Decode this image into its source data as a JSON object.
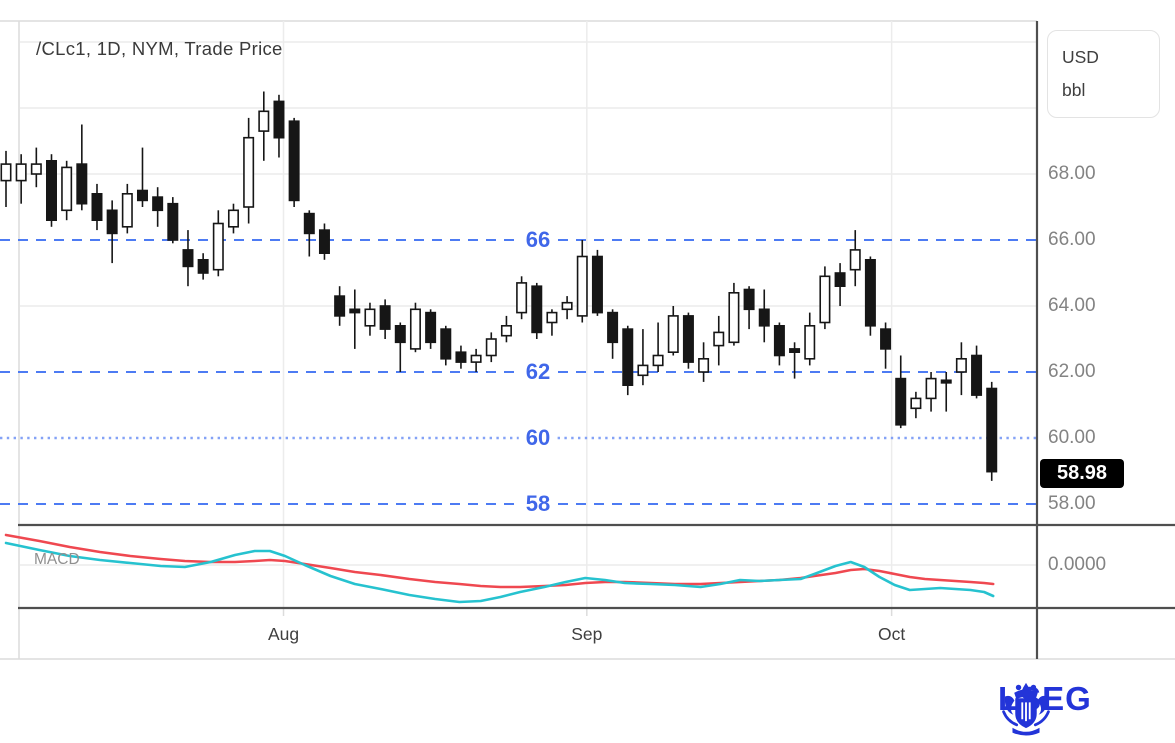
{
  "header": {
    "title": "/CLc1, 1D, NYM, Trade Price"
  },
  "price_axis": {
    "unit_top": "USD",
    "unit_bottom": "bbl",
    "ticks": [
      {
        "label": "68.00",
        "value": 68
      },
      {
        "label": "66.00",
        "value": 66
      },
      {
        "label": "64.00",
        "value": 64
      },
      {
        "label": "62.00",
        "value": 62
      },
      {
        "label": "60.00",
        "value": 60
      },
      {
        "label": "58.00",
        "value": 58
      }
    ],
    "last_price_label": "58.98",
    "last_price_value": 58.98,
    "macd_zero_label": "0.0000"
  },
  "levels": [
    {
      "label": "66",
      "value": 66,
      "style": "dashed"
    },
    {
      "label": "62",
      "value": 62,
      "style": "dashed"
    },
    {
      "label": "60",
      "value": 60,
      "style": "dotted"
    },
    {
      "label": "58",
      "value": 58,
      "style": "dashed"
    }
  ],
  "time_axis": {
    "ticks": [
      {
        "label": "Aug",
        "index": 18.3
      },
      {
        "label": "Sep",
        "index": 38.3
      },
      {
        "label": "Oct",
        "index": 58.4
      }
    ]
  },
  "macd_panel": {
    "label": "MACD"
  },
  "logo": {
    "text": "LSEG",
    "color": "#2334d8"
  },
  "colors": {
    "candle_dark": "#161616",
    "candle_up_fill": "#ffffff",
    "level_blue": "#4d7bf3",
    "level_blue_dotted": "#84a2f6",
    "label_blue": "#4067e9",
    "grid_light": "#ececec",
    "border_light": "#dcdcdc",
    "border_dark": "#4f4f4f",
    "macd_line": "#26c2cf",
    "macd_signal": "#ef4850"
  },
  "chart_data": {
    "type": "candlestick",
    "title": "/CLc1, 1D, NYM, Trade Price",
    "instrument": "/CLc1",
    "interval": "1D",
    "exchange": "NYM",
    "unit": "USD bbl",
    "x_ticks": [
      "Aug",
      "Sep",
      "Oct"
    ],
    "y_ticks": [
      68,
      66,
      64,
      62,
      60,
      58
    ],
    "gray_grid_prices": [
      72,
      70,
      68,
      64
    ],
    "last_price": 58.98,
    "ohlc": [
      [
        67.8,
        68.7,
        67.0,
        68.3
      ],
      [
        67.8,
        68.6,
        67.1,
        68.3
      ],
      [
        68.0,
        68.8,
        67.6,
        68.3
      ],
      [
        68.4,
        68.6,
        66.4,
        66.6
      ],
      [
        66.9,
        68.4,
        66.6,
        68.2
      ],
      [
        68.3,
        69.5,
        66.9,
        67.1
      ],
      [
        67.4,
        67.7,
        66.3,
        66.6
      ],
      [
        66.9,
        67.2,
        65.3,
        66.2
      ],
      [
        66.4,
        67.7,
        66.2,
        67.4
      ],
      [
        67.5,
        68.8,
        67.0,
        67.2
      ],
      [
        67.3,
        67.6,
        66.4,
        66.9
      ],
      [
        67.1,
        67.3,
        65.9,
        66.0
      ],
      [
        65.7,
        66.3,
        64.6,
        65.2
      ],
      [
        65.4,
        65.6,
        64.8,
        65.0
      ],
      [
        65.1,
        66.9,
        64.9,
        66.5
      ],
      [
        66.4,
        67.1,
        66.2,
        66.9
      ],
      [
        67.0,
        69.7,
        66.5,
        69.1
      ],
      [
        69.3,
        70.5,
        68.4,
        69.9
      ],
      [
        70.2,
        70.4,
        68.5,
        69.1
      ],
      [
        69.6,
        69.7,
        67.0,
        67.2
      ],
      [
        66.8,
        66.9,
        65.5,
        66.2
      ],
      [
        66.3,
        66.5,
        65.4,
        65.6
      ],
      [
        64.3,
        64.6,
        63.4,
        63.7
      ],
      [
        63.9,
        64.5,
        62.7,
        63.8
      ],
      [
        63.4,
        64.1,
        63.1,
        63.9
      ],
      [
        64.0,
        64.2,
        63.0,
        63.3
      ],
      [
        63.4,
        63.5,
        62.0,
        62.9
      ],
      [
        62.7,
        64.1,
        62.6,
        63.9
      ],
      [
        63.8,
        63.9,
        62.7,
        62.9
      ],
      [
        63.3,
        63.4,
        62.2,
        62.4
      ],
      [
        62.6,
        62.8,
        62.1,
        62.3
      ],
      [
        62.3,
        62.7,
        62.0,
        62.5
      ],
      [
        62.5,
        63.2,
        62.3,
        63.0
      ],
      [
        63.1,
        63.7,
        62.9,
        63.4
      ],
      [
        63.8,
        64.9,
        63.6,
        64.7
      ],
      [
        64.6,
        64.7,
        63.0,
        63.2
      ],
      [
        63.5,
        63.9,
        63.1,
        63.8
      ],
      [
        63.9,
        64.3,
        63.6,
        64.1
      ],
      [
        63.7,
        66.0,
        63.5,
        65.5
      ],
      [
        65.5,
        65.7,
        63.7,
        63.8
      ],
      [
        63.8,
        63.9,
        62.4,
        62.9
      ],
      [
        63.3,
        63.4,
        61.3,
        61.6
      ],
      [
        61.9,
        63.3,
        61.6,
        62.2
      ],
      [
        62.2,
        63.5,
        62.0,
        62.5
      ],
      [
        62.6,
        64.0,
        62.5,
        63.7
      ],
      [
        63.7,
        63.8,
        62.1,
        62.3
      ],
      [
        62.0,
        62.9,
        61.7,
        62.4
      ],
      [
        62.8,
        63.7,
        62.2,
        63.2
      ],
      [
        62.9,
        64.7,
        62.8,
        64.4
      ],
      [
        64.5,
        64.6,
        63.3,
        63.9
      ],
      [
        63.9,
        64.5,
        62.9,
        63.4
      ],
      [
        63.4,
        63.5,
        62.2,
        62.5
      ],
      [
        62.7,
        62.9,
        61.8,
        62.6
      ],
      [
        62.4,
        63.8,
        62.2,
        63.4
      ],
      [
        63.5,
        65.2,
        63.3,
        64.9
      ],
      [
        65.0,
        65.3,
        64.0,
        64.6
      ],
      [
        65.1,
        66.3,
        64.6,
        65.7
      ],
      [
        65.4,
        65.5,
        63.1,
        63.4
      ],
      [
        63.3,
        63.5,
        62.1,
        62.7
      ],
      [
        61.8,
        62.5,
        60.3,
        60.4
      ],
      [
        60.9,
        61.4,
        60.6,
        61.2
      ],
      [
        61.2,
        62.0,
        60.8,
        61.8
      ],
      [
        61.75,
        62.0,
        60.8,
        61.7
      ],
      [
        62.0,
        62.9,
        61.3,
        62.4
      ],
      [
        62.5,
        62.8,
        61.2,
        61.3
      ],
      [
        61.5,
        61.7,
        58.7,
        58.98
      ]
    ],
    "macd": {
      "zero": 0.0,
      "macd_points": [
        [
          0,
          0.333
        ],
        [
          2.2,
          0.227
        ],
        [
          4.2,
          0.136
        ],
        [
          6.2,
          0.076
        ],
        [
          8.2,
          0.03
        ],
        [
          10.2,
          -0.015
        ],
        [
          11.8,
          -0.03
        ],
        [
          13.5,
          0.045
        ],
        [
          15.1,
          0.152
        ],
        [
          16.4,
          0.212
        ],
        [
          17.4,
          0.212
        ],
        [
          18.4,
          0.136
        ],
        [
          19.7,
          0.0
        ],
        [
          21.4,
          -0.167
        ],
        [
          23,
          -0.288
        ],
        [
          24.7,
          -0.364
        ],
        [
          26.6,
          -0.455
        ],
        [
          28.3,
          -0.515
        ],
        [
          29.9,
          -0.561
        ],
        [
          31.3,
          -0.545
        ],
        [
          32.6,
          -0.485
        ],
        [
          33.9,
          -0.409
        ],
        [
          35.5,
          -0.333
        ],
        [
          36.9,
          -0.258
        ],
        [
          38.2,
          -0.197
        ],
        [
          39.5,
          -0.227
        ],
        [
          40.8,
          -0.273
        ],
        [
          42.5,
          -0.288
        ],
        [
          44.1,
          -0.303
        ],
        [
          45.8,
          -0.333
        ],
        [
          47.1,
          -0.288
        ],
        [
          48.4,
          -0.227
        ],
        [
          49.7,
          -0.242
        ],
        [
          51,
          -0.227
        ],
        [
          52.4,
          -0.212
        ],
        [
          53.3,
          -0.136
        ],
        [
          54.7,
          -0.015
        ],
        [
          55.7,
          0.045
        ],
        [
          56.6,
          -0.03
        ],
        [
          57.6,
          -0.182
        ],
        [
          58.6,
          -0.303
        ],
        [
          59.6,
          -0.379
        ],
        [
          60.6,
          -0.364
        ],
        [
          61.6,
          -0.348
        ],
        [
          62.6,
          -0.364
        ],
        [
          63.6,
          -0.379
        ],
        [
          64.5,
          -0.409
        ],
        [
          65.1,
          -0.47
        ]
      ],
      "signal_points": [
        [
          0,
          0.455
        ],
        [
          2.2,
          0.364
        ],
        [
          4.2,
          0.273
        ],
        [
          6.2,
          0.197
        ],
        [
          8.2,
          0.136
        ],
        [
          10.2,
          0.091
        ],
        [
          11.8,
          0.061
        ],
        [
          13.5,
          0.045
        ],
        [
          15.1,
          0.045
        ],
        [
          16.4,
          0.061
        ],
        [
          17.4,
          0.076
        ],
        [
          18.4,
          0.061
        ],
        [
          19.7,
          0.015
        ],
        [
          21.4,
          -0.045
        ],
        [
          23,
          -0.106
        ],
        [
          24.7,
          -0.152
        ],
        [
          26.6,
          -0.212
        ],
        [
          28.3,
          -0.258
        ],
        [
          29.9,
          -0.288
        ],
        [
          31.3,
          -0.318
        ],
        [
          32.6,
          -0.333
        ],
        [
          33.9,
          -0.333
        ],
        [
          35.5,
          -0.318
        ],
        [
          36.9,
          -0.303
        ],
        [
          38.2,
          -0.273
        ],
        [
          39.5,
          -0.258
        ],
        [
          40.8,
          -0.258
        ],
        [
          42.5,
          -0.273
        ],
        [
          44.1,
          -0.288
        ],
        [
          45.8,
          -0.288
        ],
        [
          47.1,
          -0.273
        ],
        [
          48.4,
          -0.258
        ],
        [
          49.7,
          -0.242
        ],
        [
          51,
          -0.227
        ],
        [
          52.4,
          -0.197
        ],
        [
          53.3,
          -0.167
        ],
        [
          54.7,
          -0.121
        ],
        [
          55.7,
          -0.076
        ],
        [
          56.6,
          -0.061
        ],
        [
          57.6,
          -0.091
        ],
        [
          58.6,
          -0.136
        ],
        [
          59.6,
          -0.182
        ],
        [
          60.6,
          -0.212
        ],
        [
          61.6,
          -0.227
        ],
        [
          62.6,
          -0.242
        ],
        [
          63.6,
          -0.258
        ],
        [
          64.5,
          -0.273
        ],
        [
          65.1,
          -0.288
        ]
      ]
    }
  }
}
